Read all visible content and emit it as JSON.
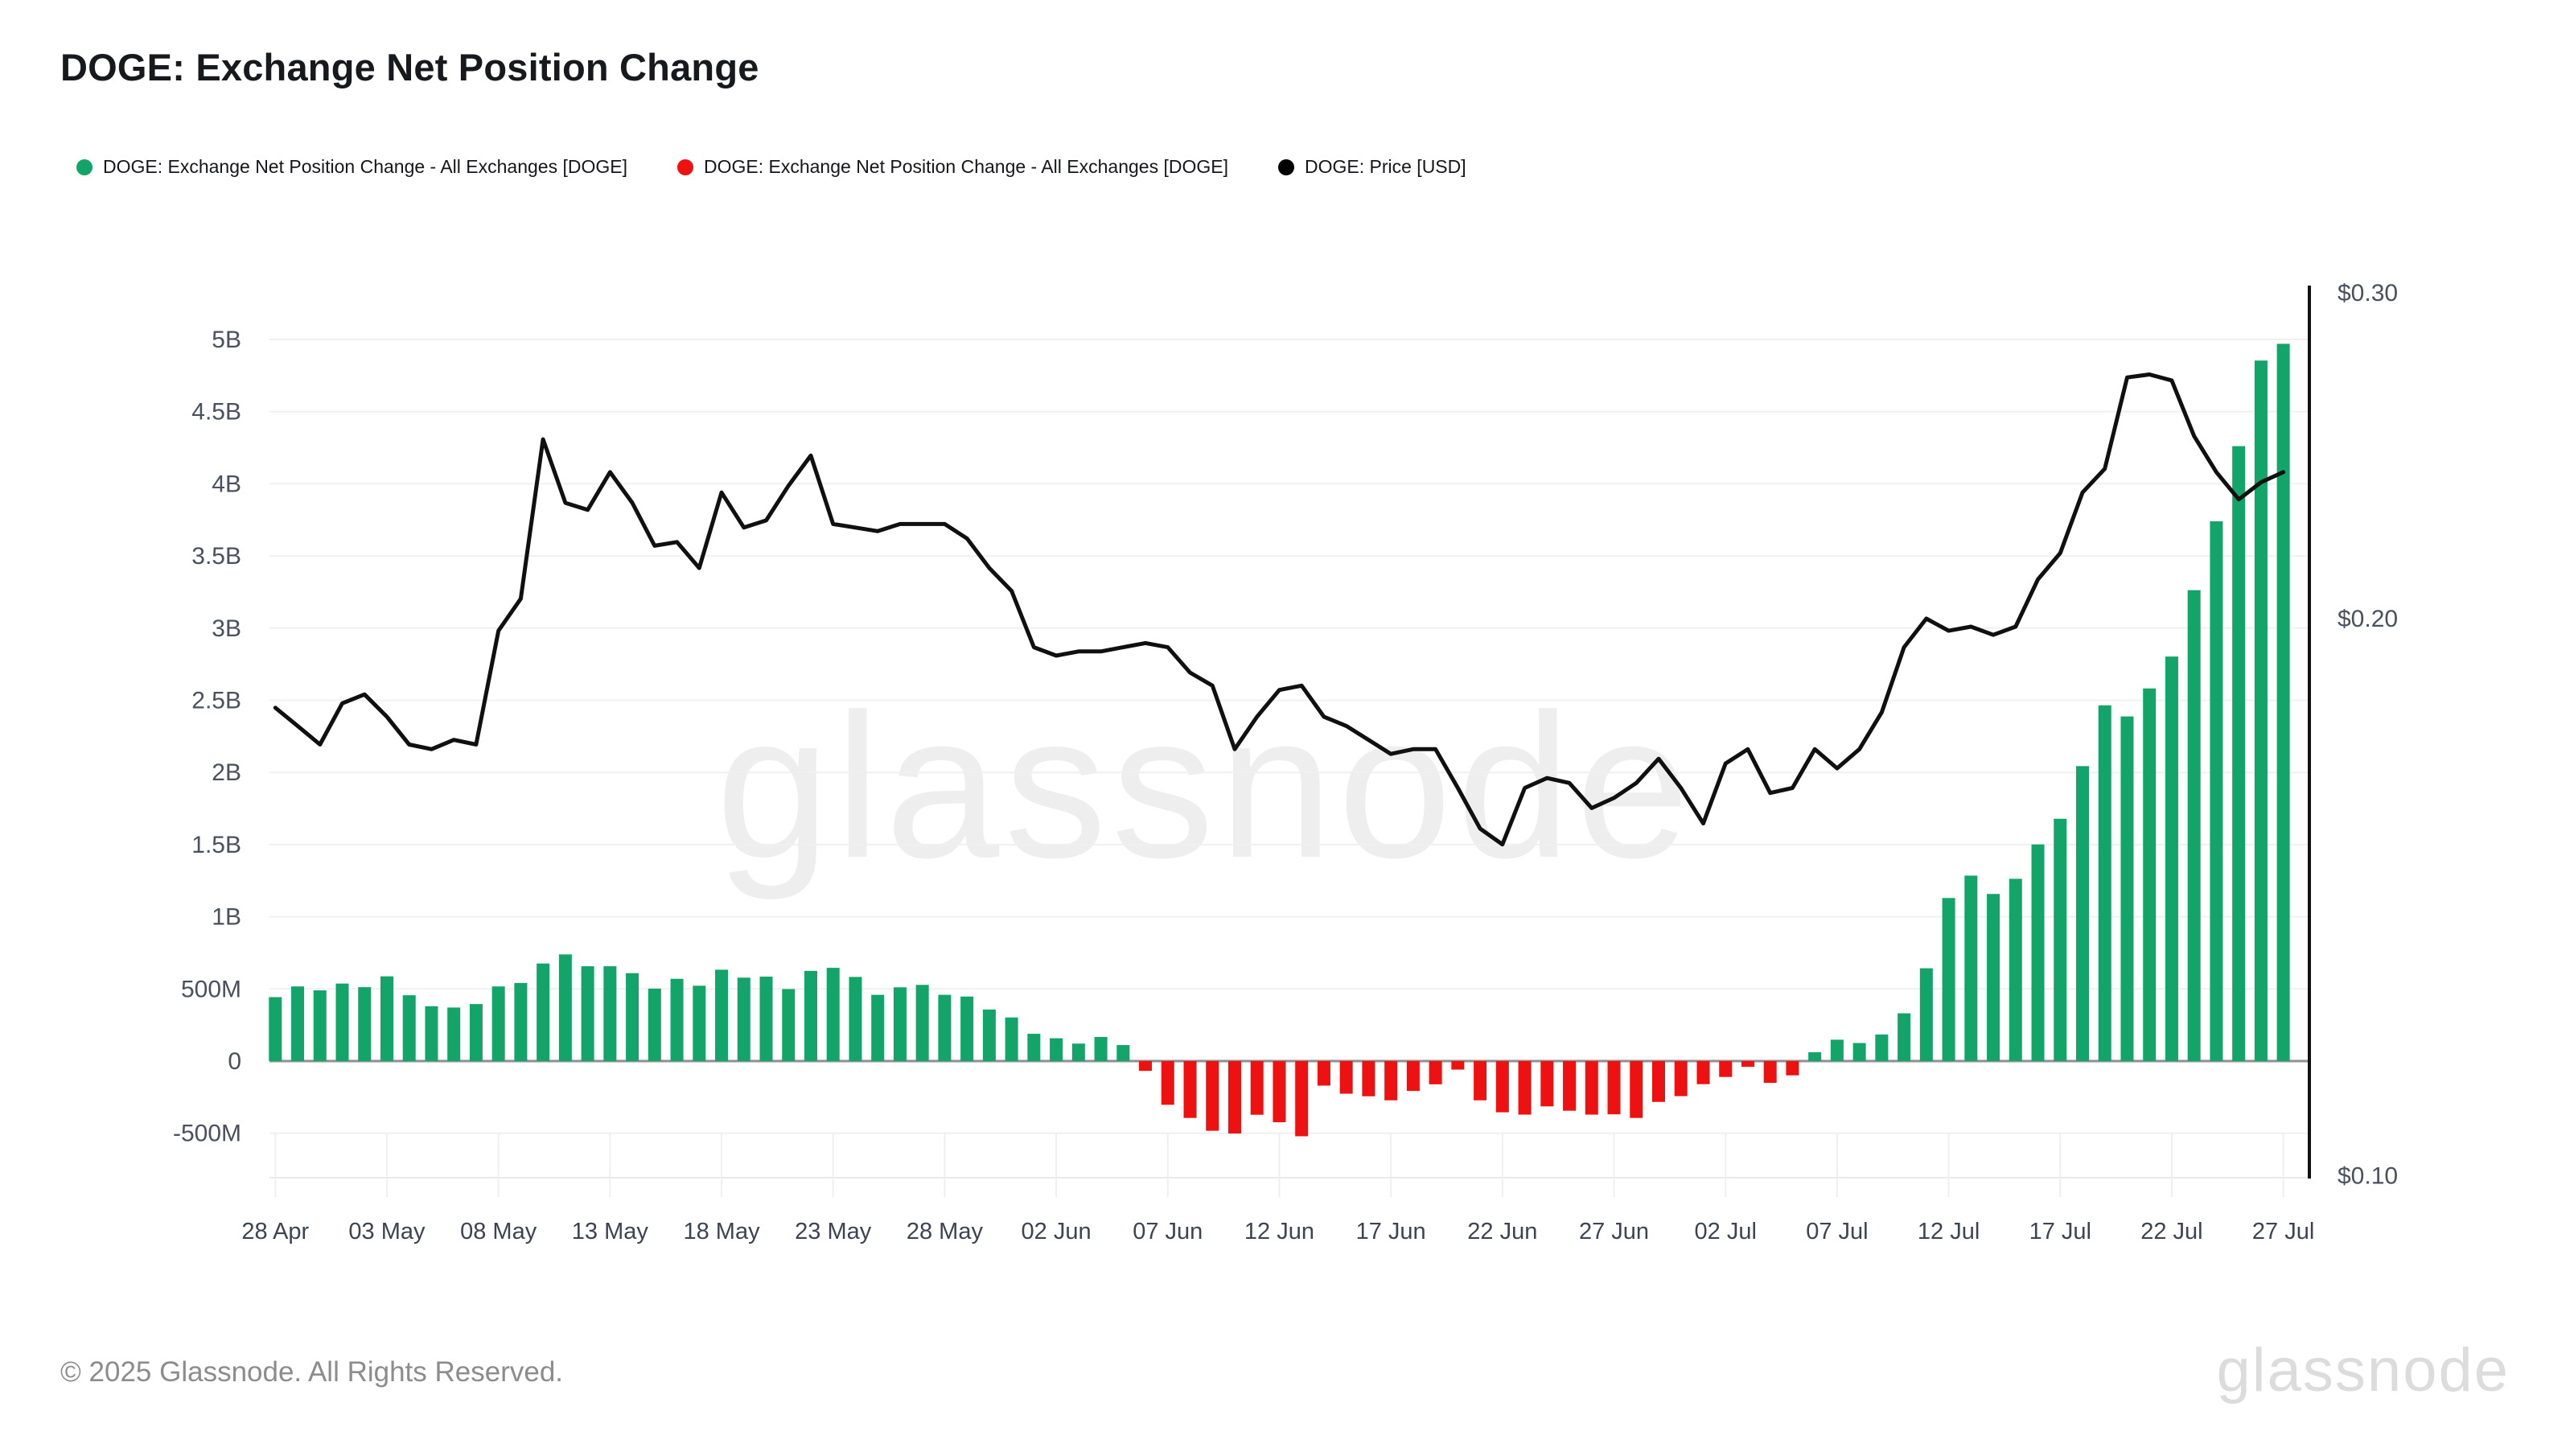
{
  "title": "DOGE: Exchange Net Position Change",
  "legend": {
    "items": [
      {
        "label": "DOGE: Exchange Net Position Change - All Exchanges [DOGE]",
        "color": "#12a468"
      },
      {
        "label": "DOGE: Exchange Net Position Change - All Exchanges [DOGE]",
        "color": "#ee1111"
      },
      {
        "label": "DOGE: Price [USD]",
        "color": "#000000"
      }
    ]
  },
  "watermark": "glassnode",
  "footer": {
    "copyright": "© 2025 Glassnode. All Rights Reserved.",
    "logo": "glassnode"
  },
  "chart_data": {
    "type": "bar+line",
    "title": "DOGE: Exchange Net Position Change",
    "categories": [
      "28 Apr",
      "29 Apr",
      "30 Apr",
      "01 May",
      "02 May",
      "03 May",
      "04 May",
      "05 May",
      "06 May",
      "07 May",
      "08 May",
      "09 May",
      "10 May",
      "11 May",
      "12 May",
      "13 May",
      "14 May",
      "15 May",
      "16 May",
      "17 May",
      "18 May",
      "19 May",
      "20 May",
      "21 May",
      "22 May",
      "23 May",
      "24 May",
      "25 May",
      "26 May",
      "27 May",
      "28 May",
      "29 May",
      "30 May",
      "31 May",
      "01 Jun",
      "02 Jun",
      "03 Jun",
      "04 Jun",
      "05 Jun",
      "06 Jun",
      "07 Jun",
      "08 Jun",
      "09 Jun",
      "10 Jun",
      "11 Jun",
      "12 Jun",
      "13 Jun",
      "14 Jun",
      "15 Jun",
      "16 Jun",
      "17 Jun",
      "18 Jun",
      "19 Jun",
      "20 Jun",
      "21 Jun",
      "22 Jun",
      "23 Jun",
      "24 Jun",
      "25 Jun",
      "26 Jun",
      "27 Jun",
      "28 Jun",
      "29 Jun",
      "30 Jun",
      "01 Jul",
      "02 Jul",
      "03 Jul",
      "04 Jul",
      "05 Jul",
      "06 Jul",
      "07 Jul",
      "08 Jul",
      "09 Jul",
      "10 Jul",
      "11 Jul",
      "12 Jul",
      "13 Jul",
      "14 Jul",
      "15 Jul",
      "16 Jul",
      "17 Jul",
      "18 Jul",
      "19 Jul",
      "20 Jul",
      "21 Jul",
      "22 Jul",
      "23 Jul",
      "24 Jul",
      "25 Jul",
      "26 Jul",
      "27 Jul"
    ],
    "series": [
      {
        "name": "DOGE: Exchange Net Position Change - All Exchanges [DOGE]",
        "type": "bar",
        "axis": "left",
        "unit": "DOGE (millions)",
        "color_positive": "#12a468",
        "color_negative": "#ee1111",
        "values_millions": [
          443,
          517,
          490,
          537,
          512,
          587,
          456,
          380,
          371,
          395,
          517,
          541,
          676,
          739,
          657,
          657,
          609,
          502,
          570,
          522,
          633,
          578,
          585,
          499,
          625,
          646,
          583,
          459,
          511,
          528,
          459,
          447,
          357,
          302,
          189,
          158,
          121,
          167,
          111,
          -68,
          -303,
          -394,
          -483,
          -502,
          -372,
          -424,
          -521,
          -170,
          -226,
          -244,
          -272,
          -207,
          -161,
          -59,
          -272,
          -355,
          -371,
          -314,
          -344,
          -371,
          -369,
          -394,
          -283,
          -243,
          -160,
          -110,
          -40,
          -151,
          -99,
          61,
          148,
          125,
          184,
          331,
          643,
          1130,
          1285,
          1158,
          1263,
          1501,
          1679,
          2044,
          2465,
          2388,
          2582,
          2803,
          3263,
          3740,
          4261,
          4854,
          4970
        ]
      },
      {
        "name": "DOGE: Price [USD]",
        "type": "line",
        "axis": "right",
        "unit": "USD",
        "color": "#101010",
        "values_usd": [
          0.179,
          0.175,
          0.171,
          0.18,
          0.182,
          0.177,
          0.171,
          0.17,
          0.172,
          0.171,
          0.197,
          0.205,
          0.25,
          0.231,
          0.229,
          0.24,
          0.231,
          0.219,
          0.22,
          0.213,
          0.234,
          0.224,
          0.226,
          0.236,
          0.245,
          0.225,
          0.224,
          0.223,
          0.225,
          0.225,
          0.225,
          0.221,
          0.213,
          0.207,
          0.193,
          0.191,
          0.192,
          0.192,
          0.193,
          0.194,
          0.193,
          0.187,
          0.184,
          0.17,
          0.177,
          0.183,
          0.184,
          0.177,
          0.175,
          0.172,
          0.169,
          0.17,
          0.17,
          0.162,
          0.154,
          0.151,
          0.162,
          0.164,
          0.163,
          0.158,
          0.16,
          0.163,
          0.168,
          0.162,
          0.155,
          0.167,
          0.17,
          0.161,
          0.162,
          0.17,
          0.166,
          0.17,
          0.178,
          0.193,
          0.2,
          0.197,
          0.198,
          0.196,
          0.198,
          0.21,
          0.217,
          0.234,
          0.241,
          0.27,
          0.271,
          0.269,
          0.251,
          0.24,
          0.232,
          0.237,
          0.24
        ]
      }
    ],
    "left_axis": {
      "ticks": [
        {
          "label": "5B",
          "v": 5000
        },
        {
          "label": "4.5B",
          "v": 4500
        },
        {
          "label": "4B",
          "v": 4000
        },
        {
          "label": "3.5B",
          "v": 3500
        },
        {
          "label": "3B",
          "v": 3000
        },
        {
          "label": "2.5B",
          "v": 2500
        },
        {
          "label": "2B",
          "v": 2000
        },
        {
          "label": "1.5B",
          "v": 1500
        },
        {
          "label": "1B",
          "v": 1000
        },
        {
          "label": "500M",
          "v": 500
        },
        {
          "label": "0",
          "v": 0
        },
        {
          "label": "-500M",
          "v": -500
        }
      ],
      "scale": "linear",
      "grid": true
    },
    "right_axis": {
      "ticks": [
        {
          "label": "$0.30",
          "v": 0.3
        },
        {
          "label": "$0.20",
          "v": 0.2
        },
        {
          "label": "$0.10",
          "v": 0.1
        }
      ],
      "scale": "log",
      "grid": false
    },
    "x_tick_every": 5,
    "legend_position": "top-left"
  }
}
